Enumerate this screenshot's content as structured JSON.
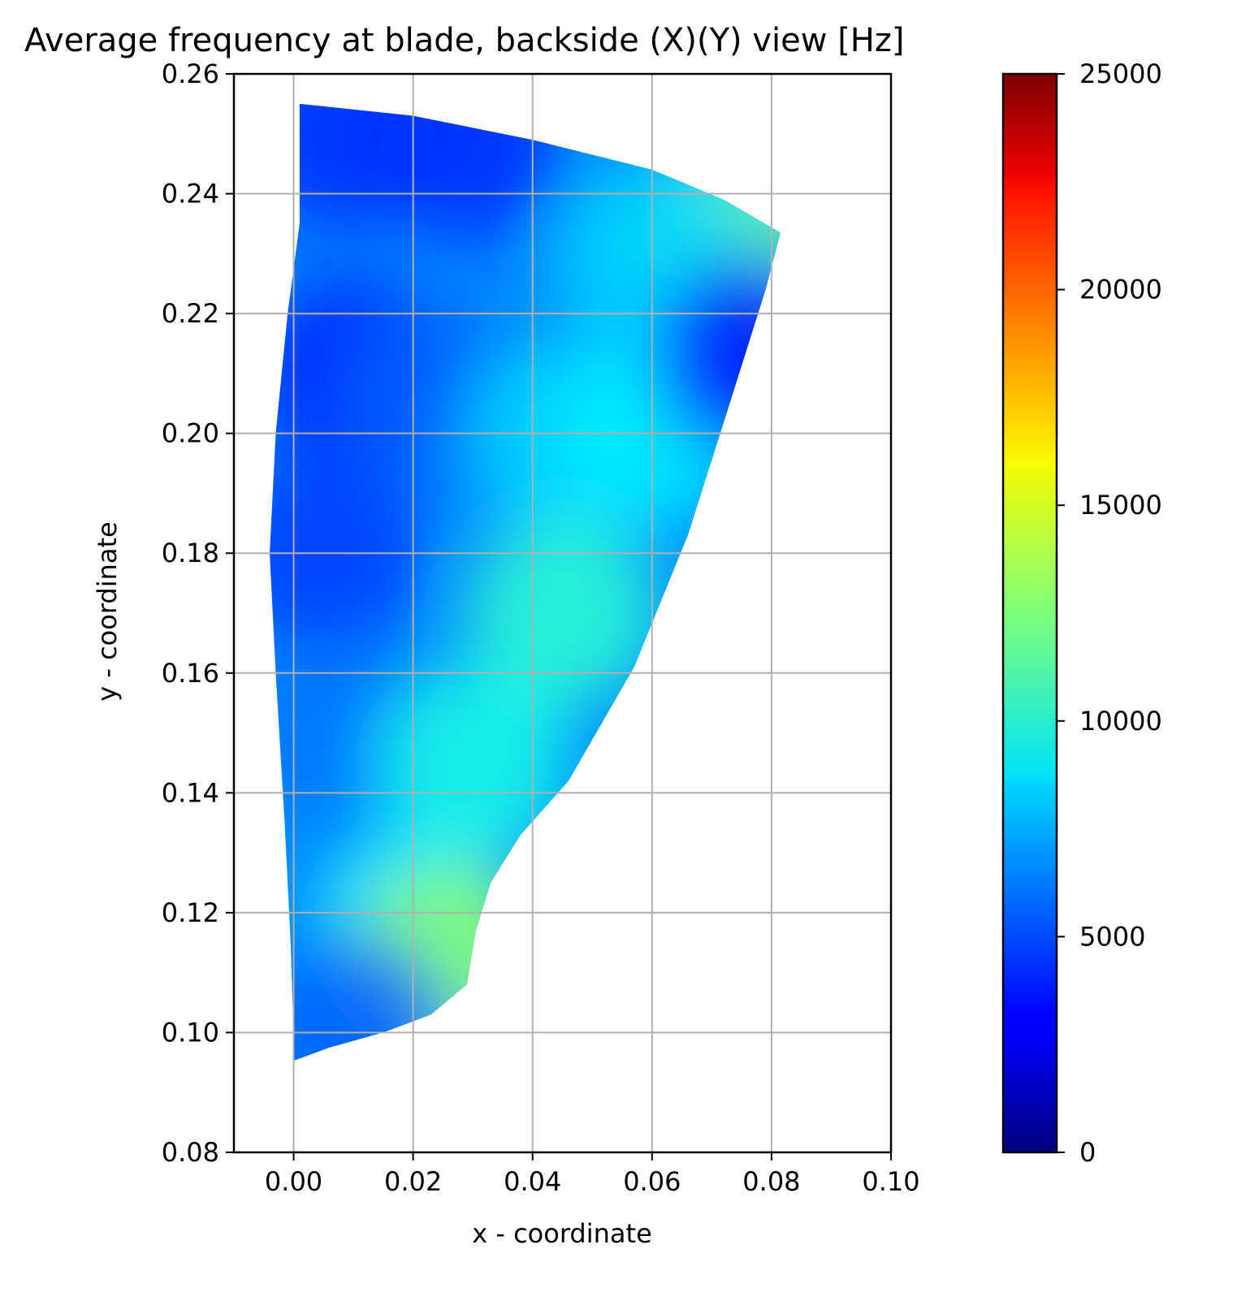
{
  "chart_data": {
    "type": "heatmap",
    "title": "Average frequency at blade, backside (X)(Y) view [Hz]",
    "xlabel": "x - coordinate",
    "ylabel": "y - coordinate",
    "xlim": [
      -0.01,
      0.1
    ],
    "ylim": [
      0.08,
      0.26
    ],
    "x_ticks": [
      0.0,
      0.02,
      0.04,
      0.06,
      0.08,
      0.1
    ],
    "x_tick_labels": [
      "0.00",
      "0.02",
      "0.04",
      "0.06",
      "0.08",
      "0.10"
    ],
    "y_ticks": [
      0.08,
      0.1,
      0.12,
      0.14,
      0.16,
      0.18,
      0.2,
      0.22,
      0.24,
      0.26
    ],
    "y_tick_labels": [
      "0.08",
      "0.10",
      "0.12",
      "0.14",
      "0.16",
      "0.18",
      "0.20",
      "0.22",
      "0.24",
      "0.26"
    ],
    "grid": true,
    "colormap": "jet",
    "colorbar": {
      "range": [
        0,
        25000
      ],
      "ticks": [
        0,
        5000,
        10000,
        15000,
        20000,
        25000
      ],
      "tick_labels": [
        "0",
        "5000",
        "10000",
        "15000",
        "20000",
        "25000"
      ]
    },
    "blade_outline": [
      [
        0.001,
        0.255
      ],
      [
        0.02,
        0.253
      ],
      [
        0.04,
        0.249
      ],
      [
        0.06,
        0.244
      ],
      [
        0.072,
        0.239
      ],
      [
        0.0815,
        0.2335
      ],
      [
        0.079,
        0.224
      ],
      [
        0.073,
        0.205
      ],
      [
        0.066,
        0.183
      ],
      [
        0.057,
        0.161
      ],
      [
        0.046,
        0.142
      ],
      [
        0.038,
        0.133
      ],
      [
        0.033,
        0.125
      ],
      [
        0.0305,
        0.117
      ],
      [
        0.029,
        0.108
      ],
      [
        0.023,
        0.103
      ],
      [
        0.015,
        0.1
      ],
      [
        0.006,
        0.0975
      ],
      [
        0.0,
        0.0953
      ],
      [
        0.0,
        0.1
      ],
      [
        -0.0005,
        0.115
      ],
      [
        -0.0015,
        0.135
      ],
      [
        -0.003,
        0.16
      ],
      [
        -0.004,
        0.18
      ],
      [
        -0.003,
        0.2
      ],
      [
        -0.001,
        0.22
      ],
      [
        0.001,
        0.235
      ],
      [
        0.001,
        0.255
      ]
    ],
    "field_samples": [
      {
        "x": 0.008,
        "y": 0.25,
        "value": 4200
      },
      {
        "x": 0.03,
        "y": 0.248,
        "value": 4200
      },
      {
        "x": 0.075,
        "y": 0.233,
        "value": 12000
      },
      {
        "x": 0.06,
        "y": 0.23,
        "value": 8500
      },
      {
        "x": 0.01,
        "y": 0.21,
        "value": 3800
      },
      {
        "x": 0.025,
        "y": 0.205,
        "value": 5600
      },
      {
        "x": 0.045,
        "y": 0.2,
        "value": 8500
      },
      {
        "x": 0.06,
        "y": 0.2,
        "value": 9000
      },
      {
        "x": 0.005,
        "y": 0.18,
        "value": 4500
      },
      {
        "x": 0.045,
        "y": 0.17,
        "value": 10500
      },
      {
        "x": 0.01,
        "y": 0.15,
        "value": 6000
      },
      {
        "x": 0.03,
        "y": 0.145,
        "value": 10000
      },
      {
        "x": 0.01,
        "y": 0.12,
        "value": 6500
      },
      {
        "x": 0.02,
        "y": 0.118,
        "value": 9000
      },
      {
        "x": 0.026,
        "y": 0.112,
        "value": 13000
      },
      {
        "x": 0.01,
        "y": 0.1,
        "value": 5500
      },
      {
        "x": 0.077,
        "y": 0.213,
        "value": 3500
      }
    ]
  }
}
